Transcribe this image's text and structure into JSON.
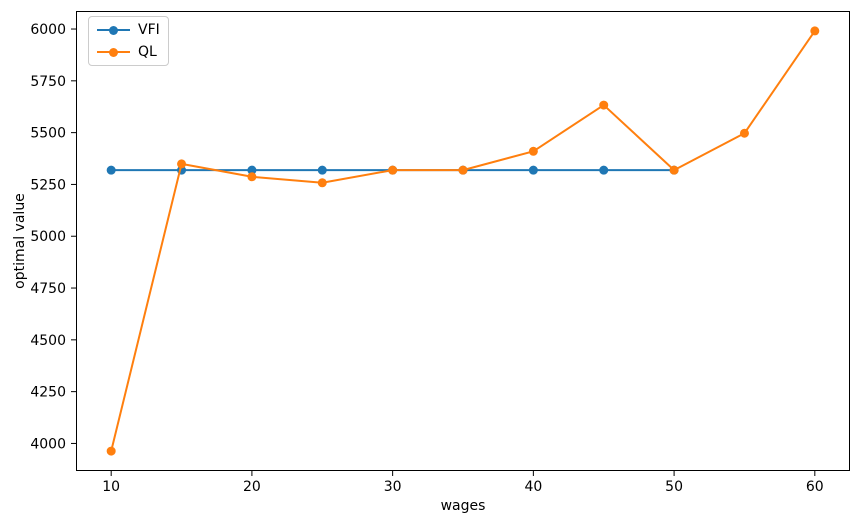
{
  "figure": {
    "background": "#ffffff",
    "frame_color": "#000000",
    "text_color": "#000000",
    "legend_border_color": "#cccccc"
  },
  "chart_data": {
    "type": "line",
    "title": "",
    "xlabel": "wages",
    "ylabel": "optimal value",
    "xlim": [
      7.5,
      62.5
    ],
    "ylim": [
      3867,
      6087
    ],
    "xticks": [
      10,
      20,
      30,
      40,
      50,
      60
    ],
    "yticks": [
      4000,
      4250,
      4500,
      4750,
      5000,
      5250,
      5500,
      5750,
      6000
    ],
    "grid": false,
    "legend": {
      "position": "upper-left",
      "entries": [
        "VFI",
        "QL"
      ]
    },
    "series": [
      {
        "name": "VFI",
        "color": "#1f77b4",
        "marker": "circle",
        "x": [
          10,
          15,
          20,
          25,
          30,
          35,
          40,
          45,
          50
        ],
        "y": [
          5319,
          5319,
          5319,
          5319,
          5319,
          5319,
          5319,
          5319,
          5319
        ]
      },
      {
        "name": "QL",
        "color": "#ff7f0e",
        "marker": "circle",
        "x": [
          10,
          15,
          20,
          25,
          30,
          35,
          40,
          45,
          50,
          55,
          60
        ],
        "y": [
          3963,
          5349,
          5287,
          5258,
          5319,
          5319,
          5410,
          5633,
          5319,
          5497,
          5991
        ]
      }
    ]
  }
}
